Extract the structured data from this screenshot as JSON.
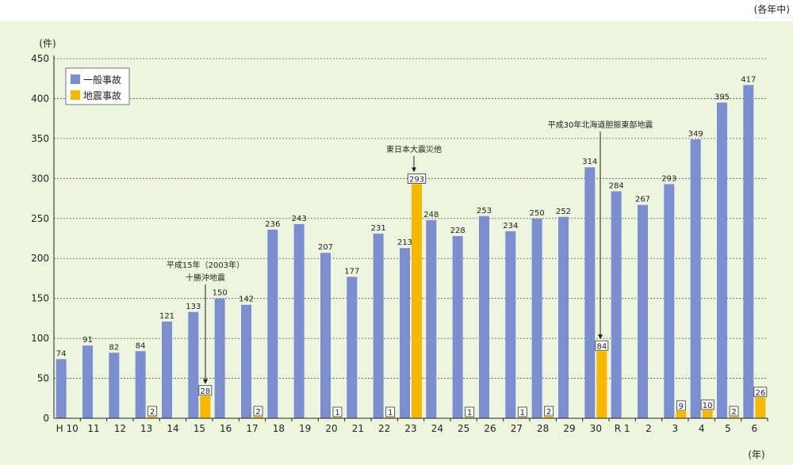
{
  "period_note": "(各年中)",
  "chart_data": {
    "type": "bar",
    "ylabel": "(件)",
    "xlabel": "(年)",
    "ylim": [
      0,
      450
    ],
    "yticks": [
      0,
      50,
      100,
      150,
      200,
      250,
      300,
      350,
      400,
      450
    ],
    "grid": true,
    "legend_position": "top-left",
    "categories": [
      "H 10",
      "11",
      "12",
      "13",
      "14",
      "15",
      "16",
      "17",
      "18",
      "19",
      "20",
      "21",
      "22",
      "23",
      "24",
      "25",
      "26",
      "27",
      "28",
      "29",
      "30",
      "R 1",
      "2",
      "3",
      "4",
      "5",
      "6"
    ],
    "series": [
      {
        "name": "一般事故",
        "color": "#7b8fd0",
        "values": [
          74,
          91,
          82,
          84,
          121,
          133,
          150,
          142,
          236,
          243,
          207,
          177,
          231,
          213,
          248,
          228,
          253,
          234,
          250,
          252,
          314,
          284,
          267,
          293,
          349,
          395,
          417
        ]
      },
      {
        "name": "地震事故",
        "color": "#f6b800",
        "values": [
          null,
          null,
          null,
          2,
          null,
          28,
          null,
          2,
          null,
          null,
          1,
          null,
          1,
          293,
          null,
          1,
          null,
          1,
          2,
          null,
          84,
          null,
          null,
          9,
          10,
          2,
          26
        ]
      }
    ],
    "annotations": [
      {
        "category": "15",
        "lines": [
          "平成15年（2003年）",
          "十勝沖地震"
        ]
      },
      {
        "category": "23",
        "lines": [
          "東日本大震災他"
        ]
      },
      {
        "category": "30",
        "lines": [
          "平成30年北海道胆振東部地震"
        ]
      }
    ]
  }
}
